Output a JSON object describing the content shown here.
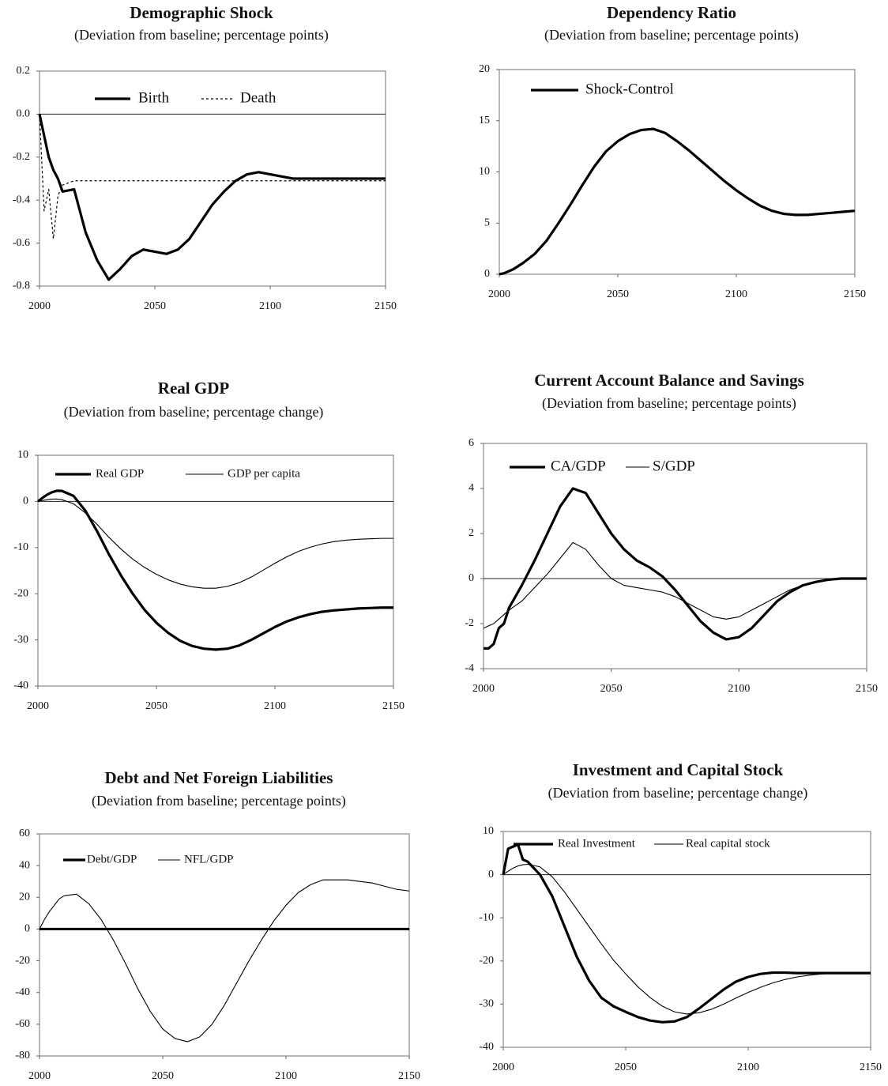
{
  "chart_data": [
    {
      "type": "line",
      "title": "Demographic Shock",
      "subtitle": "(Deviation from baseline; percentage points)",
      "x": [
        2000,
        2002,
        2004,
        2006,
        2008,
        2010,
        2015,
        2020,
        2025,
        2030,
        2035,
        2040,
        2045,
        2050,
        2055,
        2060,
        2065,
        2070,
        2075,
        2080,
        2085,
        2090,
        2095,
        2100,
        2105,
        2110,
        2115,
        2120,
        2125,
        2130,
        2135,
        2140,
        2145,
        2150
      ],
      "series": [
        {
          "name": "Birth",
          "color": "#000000",
          "style": "thick",
          "values": [
            0,
            -0.1,
            -0.2,
            -0.26,
            -0.3,
            -0.36,
            -0.35,
            -0.55,
            -0.68,
            -0.77,
            -0.72,
            -0.66,
            -0.63,
            -0.64,
            -0.65,
            -0.63,
            -0.58,
            -0.5,
            -0.42,
            -0.36,
            -0.31,
            -0.28,
            -0.27,
            -0.28,
            -0.29,
            -0.3,
            -0.3,
            -0.3,
            -0.3,
            -0.3,
            -0.3,
            -0.3,
            -0.3,
            -0.3
          ]
        },
        {
          "name": "Death",
          "color": "#000000",
          "style": "dashed",
          "values": [
            0,
            -0.45,
            -0.35,
            -0.58,
            -0.38,
            -0.33,
            -0.31,
            -0.31,
            -0.31,
            -0.31,
            -0.31,
            -0.31,
            -0.31,
            -0.31,
            -0.31,
            -0.31,
            -0.31,
            -0.31,
            -0.31,
            -0.31,
            -0.31,
            -0.31,
            -0.31,
            -0.31,
            -0.31,
            -0.31,
            -0.31,
            -0.31,
            -0.31,
            -0.31,
            -0.31,
            -0.31,
            -0.31,
            -0.31
          ]
        }
      ],
      "xlim": [
        2000,
        2150
      ],
      "xticks": [
        2000,
        2050,
        2100,
        2150
      ],
      "ylim": [
        -0.8,
        0.2
      ],
      "yticks": [
        -0.8,
        -0.6,
        -0.4,
        -0.2,
        {
          "value": 0,
          "label": "0.0"
        },
        0.2
      ],
      "zero_line": true
    },
    {
      "type": "line",
      "title": "Dependency Ratio",
      "subtitle": "(Deviation from baseline; percentage points)",
      "x": [
        2000,
        2002,
        2004,
        2006,
        2008,
        2010,
        2015,
        2020,
        2025,
        2030,
        2035,
        2040,
        2045,
        2050,
        2055,
        2060,
        2065,
        2070,
        2075,
        2080,
        2085,
        2090,
        2095,
        2100,
        2105,
        2110,
        2115,
        2120,
        2125,
        2130,
        2135,
        2140,
        2145,
        2150
      ],
      "series": [
        {
          "name": "Shock-Control",
          "color": "#000000",
          "style": "thick",
          "values": [
            0,
            0.1,
            0.3,
            0.5,
            0.8,
            1.1,
            2,
            3.3,
            5,
            6.8,
            8.7,
            10.5,
            12,
            13,
            13.7,
            14.1,
            14.2,
            13.8,
            13,
            12.1,
            11.1,
            10.1,
            9.1,
            8.2,
            7.4,
            6.7,
            6.2,
            5.9,
            5.8,
            5.8,
            5.9,
            6,
            6.1,
            6.2
          ]
        }
      ],
      "xlim": [
        2000,
        2150
      ],
      "xticks": [
        2000,
        2050,
        2100,
        2150
      ],
      "ylim": [
        0,
        20
      ],
      "yticks": [
        0,
        5,
        10,
        15,
        20
      ],
      "zero_line": false
    },
    {
      "type": "line",
      "title": "Real GDP",
      "subtitle": "(Deviation from baseline; percentage change)",
      "x": [
        2000,
        2002,
        2004,
        2006,
        2008,
        2010,
        2015,
        2020,
        2025,
        2030,
        2035,
        2040,
        2045,
        2050,
        2055,
        2060,
        2065,
        2070,
        2075,
        2080,
        2085,
        2090,
        2095,
        2100,
        2105,
        2110,
        2115,
        2120,
        2125,
        2130,
        2135,
        2140,
        2145,
        2150
      ],
      "series": [
        {
          "name": "Real GDP",
          "color": "#000000",
          "style": "thick",
          "values": [
            0,
            0.8,
            1.5,
            2,
            2.3,
            2.3,
            1.2,
            -2,
            -6.5,
            -11.5,
            -16,
            -20,
            -23.5,
            -26.3,
            -28.5,
            -30.2,
            -31.3,
            -31.9,
            -32.1,
            -31.9,
            -31.2,
            -30,
            -28.6,
            -27.2,
            -26,
            -25.1,
            -24.4,
            -23.9,
            -23.6,
            -23.4,
            -23.2,
            -23.1,
            -23,
            -23
          ]
        },
        {
          "name": "GDP per capita",
          "color": "#000000",
          "style": "thin",
          "values": [
            0,
            0.2,
            0.4,
            0.5,
            0.5,
            0.4,
            -0.5,
            -2.5,
            -5,
            -7.8,
            -10.3,
            -12.5,
            -14.3,
            -15.8,
            -17,
            -17.9,
            -18.5,
            -18.8,
            -18.8,
            -18.4,
            -17.6,
            -16.4,
            -14.9,
            -13.4,
            -12,
            -10.8,
            -9.9,
            -9.2,
            -8.7,
            -8.4,
            -8.2,
            -8.1,
            -8,
            -8
          ]
        }
      ],
      "xlim": [
        2000,
        2150
      ],
      "xticks": [
        2000,
        2050,
        2100,
        2150
      ],
      "ylim": [
        -40,
        10
      ],
      "yticks": [
        -40,
        -30,
        -20,
        -10,
        0,
        10
      ],
      "zero_line": true
    },
    {
      "type": "line",
      "title": "Current Account Balance and Savings",
      "subtitle": "(Deviation from baseline; percentage points)",
      "x": [
        2000,
        2002,
        2004,
        2006,
        2008,
        2010,
        2015,
        2020,
        2025,
        2030,
        2035,
        2040,
        2045,
        2050,
        2055,
        2060,
        2065,
        2070,
        2075,
        2080,
        2085,
        2090,
        2095,
        2100,
        2105,
        2110,
        2115,
        2120,
        2125,
        2130,
        2135,
        2140,
        2145,
        2150
      ],
      "series": [
        {
          "name": "CA/GDP",
          "color": "#000000",
          "style": "thick",
          "values": [
            -3.1,
            -3.1,
            -2.9,
            -2.2,
            -2,
            -1.3,
            -0.3,
            0.8,
            2,
            3.2,
            4,
            3.8,
            2.9,
            2,
            1.3,
            0.8,
            0.5,
            0.1,
            -0.5,
            -1.2,
            -1.9,
            -2.4,
            -2.7,
            -2.6,
            -2.2,
            -1.6,
            -1,
            -0.6,
            -0.3,
            -0.15,
            -0.05,
            0,
            0,
            0
          ]
        },
        {
          "name": "S/GDP",
          "color": "#000000",
          "style": "thin",
          "values": [
            -2.2,
            -2.1,
            -2,
            -1.8,
            -1.6,
            -1.4,
            -1,
            -0.4,
            0.2,
            0.9,
            1.6,
            1.3,
            0.6,
            0,
            -0.3,
            -0.4,
            -0.5,
            -0.6,
            -0.8,
            -1.1,
            -1.4,
            -1.7,
            -1.8,
            -1.7,
            -1.4,
            -1.1,
            -0.8,
            -0.5,
            -0.3,
            -0.15,
            -0.05,
            0,
            0,
            0
          ]
        }
      ],
      "xlim": [
        2000,
        2150
      ],
      "xticks": [
        2000,
        2050,
        2100,
        2150
      ],
      "ylim": [
        -4,
        6
      ],
      "yticks": [
        -4,
        -2,
        0,
        2,
        4,
        6
      ],
      "zero_line": true
    },
    {
      "type": "line",
      "title": "Debt and Net Foreign Liabilities",
      "subtitle": "(Deviation from baseline; percentage points)",
      "x": [
        2000,
        2002,
        2004,
        2006,
        2008,
        2010,
        2015,
        2020,
        2025,
        2030,
        2035,
        2040,
        2045,
        2050,
        2055,
        2060,
        2065,
        2070,
        2075,
        2080,
        2085,
        2090,
        2095,
        2100,
        2105,
        2110,
        2115,
        2120,
        2125,
        2130,
        2135,
        2140,
        2145,
        2150
      ],
      "series": [
        {
          "name": "Debt/GDP",
          "color": "#000000",
          "style": "thick",
          "values": [
            0,
            0,
            0,
            0,
            0,
            0,
            0,
            0,
            0,
            0,
            0,
            0,
            0,
            0,
            0,
            0,
            0,
            0,
            0,
            0,
            0,
            0,
            0,
            0,
            0,
            0,
            0,
            0,
            0,
            0,
            0,
            0,
            0,
            0
          ]
        },
        {
          "name": "NFL/GDP",
          "color": "#000000",
          "style": "thin",
          "values": [
            0,
            6,
            11,
            15,
            19,
            21,
            22,
            16,
            6,
            -7,
            -22,
            -38,
            -52,
            -63,
            -69,
            -71,
            -68,
            -60,
            -48,
            -34,
            -20,
            -7,
            5,
            15,
            23,
            28,
            31,
            31,
            31,
            30,
            29,
            27,
            25,
            24
          ]
        }
      ],
      "xlim": [
        2000,
        2150
      ],
      "xticks": [
        2000,
        2050,
        2100,
        2150
      ],
      "ylim": [
        -80,
        60
      ],
      "yticks": [
        -80,
        -60,
        -40,
        -20,
        0,
        20,
        40,
        60
      ],
      "zero_line": false
    },
    {
      "type": "line",
      "title": "Investment and Capital Stock",
      "subtitle": "(Deviation from baseline; percentage change)",
      "x": [
        2000,
        2002,
        2004,
        2006,
        2008,
        2010,
        2015,
        2020,
        2025,
        2030,
        2035,
        2040,
        2045,
        2050,
        2055,
        2060,
        2065,
        2070,
        2075,
        2080,
        2085,
        2090,
        2095,
        2100,
        2105,
        2110,
        2115,
        2120,
        2125,
        2130,
        2135,
        2140,
        2145,
        2150
      ],
      "series": [
        {
          "name": "Real Investment",
          "color": "#000000",
          "style": "thick",
          "values": [
            0,
            6,
            6.5,
            7,
            3.5,
            3,
            0,
            -5,
            -12,
            -19,
            -24.5,
            -28.5,
            -30.5,
            -31.8,
            -33,
            -33.8,
            -34.2,
            -34,
            -33,
            -31,
            -28.8,
            -26.6,
            -24.8,
            -23.7,
            -23,
            -22.7,
            -22.7,
            -22.8,
            -22.8,
            -22.8,
            -22.8,
            -22.8,
            -22.8,
            -22.8
          ]
        },
        {
          "name": "Real capital stock",
          "color": "#000000",
          "style": "thin",
          "values": [
            0,
            0.8,
            1.5,
            2,
            2.3,
            2.4,
            1.8,
            -0.5,
            -4,
            -8,
            -12,
            -16,
            -19.8,
            -23,
            -26,
            -28.5,
            -30.5,
            -31.8,
            -32.3,
            -32,
            -31.2,
            -30,
            -28.6,
            -27.3,
            -26.1,
            -25.1,
            -24.3,
            -23.7,
            -23.3,
            -23,
            -22.9,
            -22.8,
            -22.8,
            -22.8
          ]
        }
      ],
      "xlim": [
        2000,
        2150
      ],
      "xticks": [
        2000,
        2050,
        2100,
        2150
      ],
      "ylim": [
        -40,
        10
      ],
      "yticks": [
        -40,
        -30,
        -20,
        -10,
        0,
        10
      ],
      "zero_line": true
    }
  ]
}
